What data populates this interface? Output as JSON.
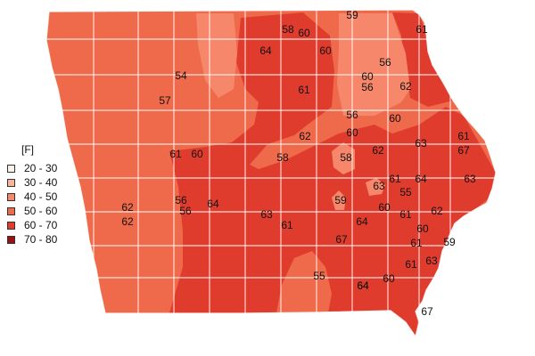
{
  "legend": {
    "title": "[F]",
    "items": [
      {
        "label": "20 - 30",
        "color": "#fdf0e8"
      },
      {
        "label": "30 - 40",
        "color": "#fbb39b"
      },
      {
        "label": "40 - 50",
        "color": "#f6876a"
      },
      {
        "label": "50 - 60",
        "color": "#ee6a4b"
      },
      {
        "label": "60 - 70",
        "color": "#e03c2e"
      },
      {
        "label": "70 - 80",
        "color": "#9e0f12"
      }
    ]
  },
  "map_values": [
    "59",
    "58",
    "60",
    "61",
    "64",
    "60",
    "54",
    "56",
    "60",
    "56",
    "62",
    "57",
    "61",
    "56",
    "60",
    "62",
    "60",
    "61",
    "63",
    "62",
    "67",
    "61",
    "60",
    "58",
    "58",
    "61",
    "64",
    "63",
    "63",
    "55",
    "62",
    "56",
    "56",
    "59",
    "64",
    "62",
    "63",
    "60",
    "61",
    "62",
    "61",
    "67",
    "64",
    "60",
    "59",
    "61",
    "64",
    "55",
    "61",
    "63",
    "64",
    "60",
    "67"
  ]
}
